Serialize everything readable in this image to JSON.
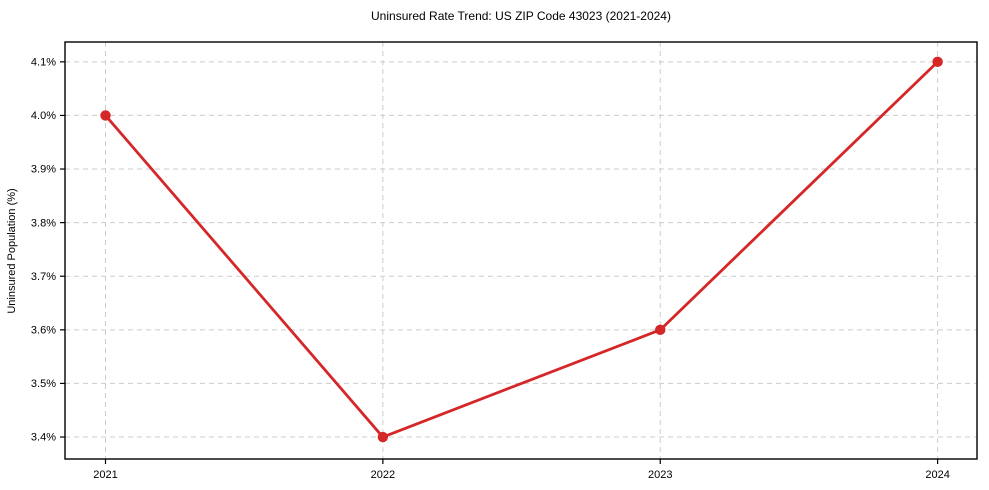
{
  "chart_data": {
    "type": "line",
    "title": "Uninsured Rate Trend: US ZIP Code 43023 (2021-2024)",
    "xlabel": "",
    "ylabel": "Uninsured Population (%)",
    "x": [
      2021,
      2022,
      2023,
      2024
    ],
    "series": [
      {
        "name": "Uninsured Population (%)",
        "values": [
          4.0,
          3.4,
          3.6,
          4.1
        ]
      }
    ],
    "xlim": [
      2020.854,
      2024.142
    ],
    "ylim": [
      3.359,
      4.137
    ],
    "xticks": {
      "values": [
        2021,
        2022,
        2023,
        2024
      ],
      "labels": [
        "2021",
        "2022",
        "2023",
        "2024"
      ]
    },
    "yticks": {
      "values": [
        3.4,
        3.5,
        3.6,
        3.7,
        3.8,
        3.9,
        4.0,
        4.1
      ],
      "labels": [
        "3.4%",
        "3.5%",
        "3.6%",
        "3.7%",
        "3.8%",
        "3.9%",
        "4.0%",
        "4.1%"
      ]
    },
    "grid": true,
    "grid_style": "dashed",
    "legend": false,
    "colors": {
      "line": "#d62728",
      "marker": "#d62728",
      "grid": "#cccccc",
      "spine": "#000000",
      "tick_text": "#000000"
    }
  }
}
